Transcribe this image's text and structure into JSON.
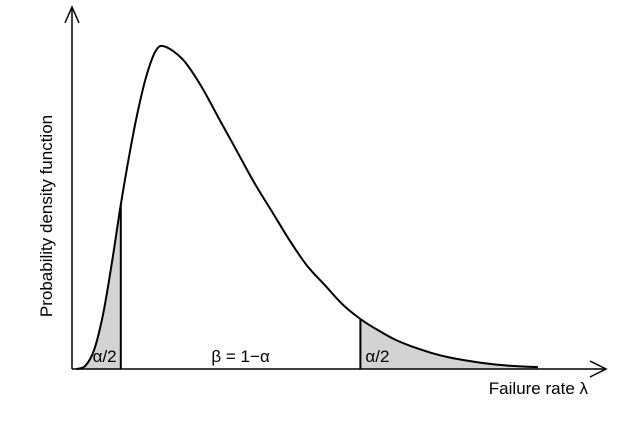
{
  "chart_data": {
    "type": "area",
    "xlabel": "Failure rate λ",
    "ylabel": "Probability density function",
    "axis_ticks": false,
    "grid": false,
    "legend": "none",
    "curve": {
      "x": [
        0.0,
        0.1,
        0.2,
        0.3,
        0.4,
        0.5,
        0.6,
        0.7,
        0.8,
        0.9,
        1.0,
        1.2,
        1.4,
        1.6,
        1.8,
        2.0,
        2.2,
        2.4,
        2.6,
        2.8,
        3.0,
        3.2,
        3.4,
        3.6,
        3.8,
        4.0,
        4.2,
        4.4,
        4.6,
        4.8,
        5.0,
        5.2
      ],
      "y": [
        0.0,
        0.01,
        0.06,
        0.17,
        0.33,
        0.51,
        0.67,
        0.81,
        0.92,
        0.99,
        1.0,
        0.96,
        0.88,
        0.78,
        0.68,
        0.58,
        0.49,
        0.4,
        0.32,
        0.26,
        0.2,
        0.155,
        0.12,
        0.09,
        0.068,
        0.05,
        0.036,
        0.026,
        0.018,
        0.012,
        0.008,
        0.006
      ]
    },
    "lower_bound_x": 0.5,
    "upper_bound_x": 3.2,
    "xlim": [
      -0.05,
      5.9
    ],
    "ylim": [
      0,
      1.12
    ],
    "region_labels": {
      "left_tail": "α/2",
      "middle": "β = 1−α",
      "right_tail": "α/2"
    },
    "colors": {
      "curve": "#000000",
      "tail_fill": "#d3d3d3",
      "axes": "#000000"
    }
  }
}
